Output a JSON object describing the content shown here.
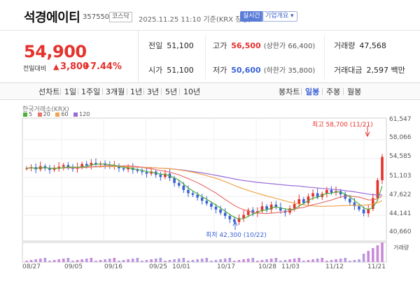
{
  "header": {
    "name": "석경에이티",
    "code": "357550",
    "market": "코스닥",
    "timestamp": "2025.11.25 11:10 기준(KRX 장중)",
    "realtime": "실시간",
    "company_info": "기업개요 ▾"
  },
  "price": {
    "current": "54,900",
    "change_label": "전일대비",
    "change_arrow": "▲",
    "change_value": "3,800",
    "change_rate": "+7.44%"
  },
  "stats": {
    "prev_label": "전일",
    "prev": "51,100",
    "open_label": "시가",
    "open": "51,100",
    "high_label": "고가",
    "high": "56,500",
    "high_limit": "(상한가 66,400)",
    "low_label": "저가",
    "low": "50,600",
    "low_limit": "(하한가 35,800)",
    "volume_label": "거래량",
    "volume": "47,568",
    "amount_label": "거래대금",
    "amount": "2,597 백만"
  },
  "toolbar": {
    "line_chart": "선차트",
    "periods": [
      "1일",
      "1주일",
      "3개월",
      "1년",
      "3년",
      "5년",
      "10년"
    ],
    "candle_chart": "봉차트",
    "candle_periods": [
      "일봉",
      "주봉",
      "월봉"
    ],
    "active_candle": "일봉"
  },
  "colors": {
    "up": "#e5322d",
    "down": "#3a62d6",
    "ma5": "#4caf3a",
    "ma20": "#e8736f",
    "ma60": "#f0a64e",
    "ma120": "#9a6bd8"
  },
  "chart_data": {
    "type": "candlestick",
    "source": "한국거래소(KRX)",
    "legend": [
      "5",
      "20",
      "60",
      "120"
    ],
    "y_ticks": [
      "61,547",
      "58,066",
      "54,585",
      "51,103",
      "47,622",
      "44,141",
      "40,660"
    ],
    "ylim": [
      40660,
      61547
    ],
    "x_ticks": [
      "08/27",
      "09/05",
      "09/16",
      "09/25",
      "10/01",
      "10/17",
      "10/28",
      "11/03",
      "11/12",
      "11/21"
    ],
    "high_annotation": "최고 58,700 (11/21)",
    "low_annotation": "최저 42,300 (10/22)",
    "volume_label": "거래량"
  }
}
